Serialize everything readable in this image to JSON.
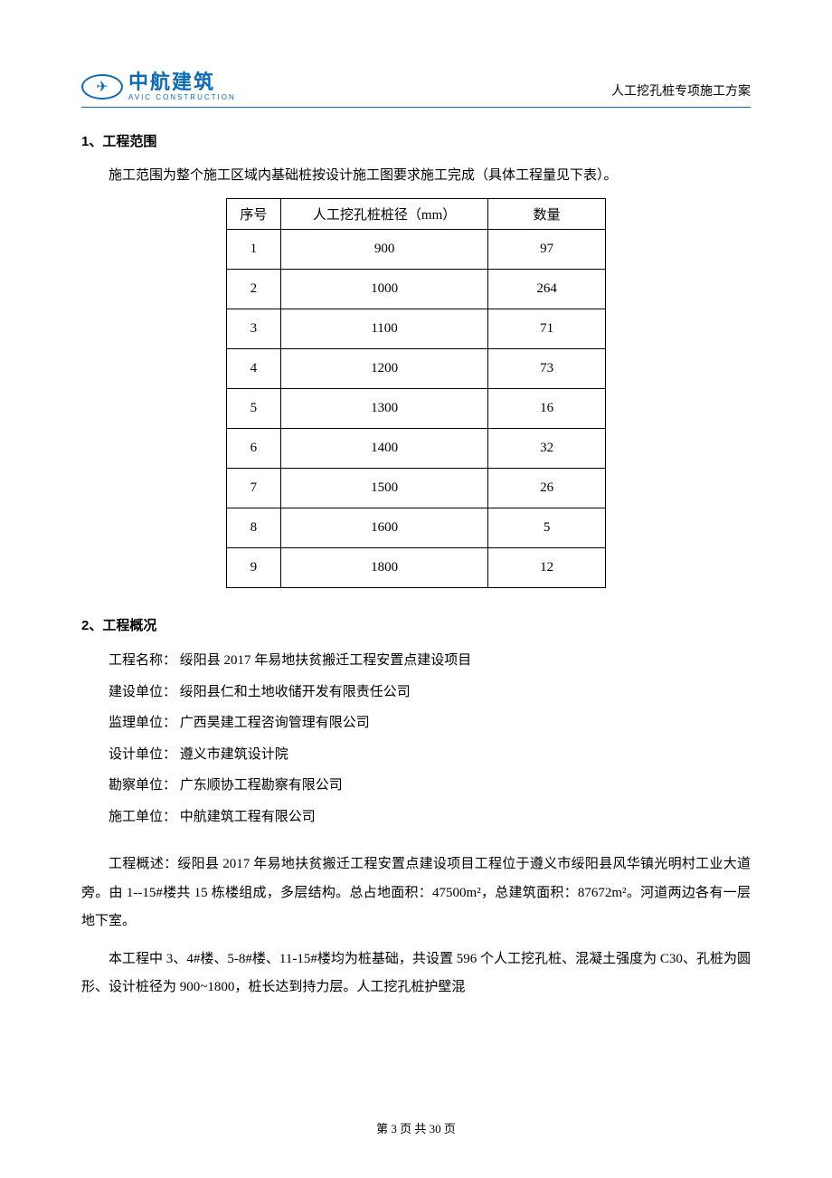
{
  "header": {
    "logo_cn": "中航建筑",
    "logo_en": "AVIC CONSTRUCTION",
    "doc_title": "人工挖孔桩专项施工方案"
  },
  "sections": {
    "s1": {
      "heading": "1、工程范围",
      "intro": "施工范围为整个施工区域内基础桩按设计施工图要求施工完成（具体工程量见下表）。"
    },
    "s2": {
      "heading": "2、工程概况",
      "items": {
        "name_label": "工程名称：",
        "name_val": "绥阳县 2017 年易地扶贫搬迁工程安置点建设项目",
        "build_label": "建设单位：",
        "build_val": "绥阳县仁和土地收储开发有限责任公司",
        "supv_label": "监理单位：",
        "supv_val": "广西昊建工程咨询管理有限公司",
        "design_label": "设计单位：",
        "design_val": "遵义市建筑设计院",
        "survey_label": "勘察单位：",
        "survey_val": "广东顺协工程勘察有限公司",
        "constr_label": "施工单位：",
        "constr_val": "中航建筑工程有限公司"
      },
      "p1": "工程概述：绥阳县 2017 年易地扶贫搬迁工程安置点建设项目工程位于遵义市绥阳县风华镇光明村工业大道旁。由 1--15#楼共 15 栋楼组成，多层结构。总占地面积：47500m²，总建筑面积：87672m²。河道两边各有一层地下室。",
      "p2": "本工程中 3、4#楼、5-8#楼、11-15#楼均为桩基础，共设置 596 个人工挖孔桩、混凝土强度为 C30、孔桩为圆形、设计桩径为 900~1800，桩长达到持力层。人工挖孔桩护壁混"
    }
  },
  "table": {
    "columns": {
      "c1": "序号",
      "c2": "人工挖孔桩桩径（mm）",
      "c3": "数量"
    },
    "rows": [
      {
        "n": "1",
        "d": "900",
        "q": "97"
      },
      {
        "n": "2",
        "d": "1000",
        "q": "264"
      },
      {
        "n": "3",
        "d": "1100",
        "q": "71"
      },
      {
        "n": "4",
        "d": "1200",
        "q": "73"
      },
      {
        "n": "5",
        "d": "1300",
        "q": "16"
      },
      {
        "n": "6",
        "d": "1400",
        "q": "32"
      },
      {
        "n": "7",
        "d": "1500",
        "q": "26"
      },
      {
        "n": "8",
        "d": "1600",
        "q": "5"
      },
      {
        "n": "9",
        "d": "1800",
        "q": "12"
      }
    ]
  },
  "footer": {
    "page": "第 3 页 共 30 页"
  }
}
